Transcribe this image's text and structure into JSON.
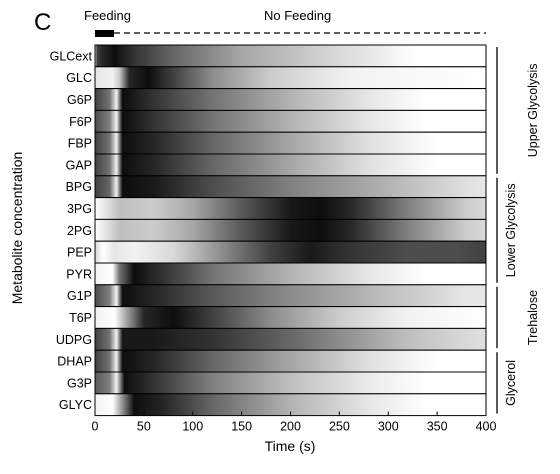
{
  "panel_label": "C",
  "feeding_label": "Feeding",
  "no_feeding_label": "No Feeding",
  "chart_data": {
    "type": "heatmap",
    "ylabel": "Metabolite concentration",
    "xlabel": "Time (s)",
    "xlim": [
      0,
      400
    ],
    "xticks": [
      0,
      50,
      100,
      150,
      200,
      250,
      300,
      350,
      400
    ],
    "feeding_period": [
      0,
      20
    ],
    "colormap": "white (low) to black (high)",
    "rows": [
      {
        "name": "GLCext",
        "profile": [
          [
            0,
            0.0
          ],
          [
            2,
            0.75
          ],
          [
            8,
            0.85
          ],
          [
            20,
            0.95
          ],
          [
            40,
            0.8
          ],
          [
            80,
            0.6
          ],
          [
            150,
            0.35
          ],
          [
            250,
            0.15
          ],
          [
            330,
            0.0
          ],
          [
            400,
            0.0
          ]
        ]
      },
      {
        "name": "GLC",
        "profile": [
          [
            0,
            0.1
          ],
          [
            18,
            0.05
          ],
          [
            25,
            0.2
          ],
          [
            35,
            0.85
          ],
          [
            55,
            0.95
          ],
          [
            80,
            0.75
          ],
          [
            120,
            0.45
          ],
          [
            180,
            0.2
          ],
          [
            260,
            0.05
          ],
          [
            400,
            0.0
          ]
        ]
      },
      {
        "name": "G6P",
        "profile": [
          [
            0,
            0.75
          ],
          [
            15,
            0.55
          ],
          [
            22,
            0.05
          ],
          [
            28,
            0.95
          ],
          [
            60,
            0.8
          ],
          [
            120,
            0.55
          ],
          [
            200,
            0.3
          ],
          [
            280,
            0.1
          ],
          [
            340,
            0.0
          ],
          [
            400,
            0.0
          ]
        ]
      },
      {
        "name": "F6P",
        "profile": [
          [
            0,
            0.7
          ],
          [
            15,
            0.5
          ],
          [
            22,
            0.05
          ],
          [
            28,
            0.95
          ],
          [
            60,
            0.8
          ],
          [
            120,
            0.55
          ],
          [
            200,
            0.3
          ],
          [
            280,
            0.1
          ],
          [
            340,
            0.0
          ],
          [
            400,
            0.0
          ]
        ]
      },
      {
        "name": "FBP",
        "profile": [
          [
            0,
            0.75
          ],
          [
            15,
            0.55
          ],
          [
            22,
            0.05
          ],
          [
            28,
            0.95
          ],
          [
            60,
            0.85
          ],
          [
            120,
            0.6
          ],
          [
            200,
            0.35
          ],
          [
            280,
            0.12
          ],
          [
            350,
            0.0
          ],
          [
            400,
            0.0
          ]
        ]
      },
      {
        "name": "GAP",
        "profile": [
          [
            0,
            0.75
          ],
          [
            15,
            0.55
          ],
          [
            22,
            0.05
          ],
          [
            28,
            0.95
          ],
          [
            60,
            0.85
          ],
          [
            120,
            0.6
          ],
          [
            200,
            0.35
          ],
          [
            280,
            0.12
          ],
          [
            350,
            0.0
          ],
          [
            400,
            0.0
          ]
        ]
      },
      {
        "name": "BPG",
        "profile": [
          [
            0,
            0.75
          ],
          [
            15,
            0.6
          ],
          [
            22,
            0.05
          ],
          [
            28,
            0.95
          ],
          [
            60,
            0.9
          ],
          [
            120,
            0.7
          ],
          [
            200,
            0.5
          ],
          [
            300,
            0.3
          ],
          [
            380,
            0.12
          ],
          [
            400,
            0.1
          ]
        ]
      },
      {
        "name": "3PG",
        "profile": [
          [
            0,
            0.0
          ],
          [
            10,
            0.1
          ],
          [
            25,
            0.25
          ],
          [
            60,
            0.2
          ],
          [
            100,
            0.35
          ],
          [
            150,
            0.65
          ],
          [
            200,
            0.9
          ],
          [
            230,
            0.95
          ],
          [
            260,
            0.85
          ],
          [
            320,
            0.5
          ],
          [
            380,
            0.2
          ],
          [
            400,
            0.15
          ]
        ]
      },
      {
        "name": "2PG",
        "profile": [
          [
            0,
            0.0
          ],
          [
            10,
            0.1
          ],
          [
            25,
            0.25
          ],
          [
            60,
            0.2
          ],
          [
            100,
            0.35
          ],
          [
            150,
            0.65
          ],
          [
            200,
            0.9
          ],
          [
            230,
            0.95
          ],
          [
            260,
            0.85
          ],
          [
            320,
            0.5
          ],
          [
            380,
            0.2
          ],
          [
            400,
            0.15
          ]
        ]
      },
      {
        "name": "PEP",
        "profile": [
          [
            0,
            0.15
          ],
          [
            8,
            0.0
          ],
          [
            20,
            0.1
          ],
          [
            40,
            0.05
          ],
          [
            80,
            0.15
          ],
          [
            130,
            0.45
          ],
          [
            180,
            0.75
          ],
          [
            220,
            0.9
          ],
          [
            260,
            0.8
          ],
          [
            320,
            0.7
          ],
          [
            370,
            0.7
          ],
          [
            400,
            0.75
          ]
        ]
      },
      {
        "name": "PYR",
        "profile": [
          [
            0,
            0.05
          ],
          [
            18,
            0.0
          ],
          [
            25,
            0.55
          ],
          [
            40,
            0.95
          ],
          [
            70,
            0.8
          ],
          [
            120,
            0.55
          ],
          [
            200,
            0.3
          ],
          [
            280,
            0.1
          ],
          [
            340,
            0.0
          ],
          [
            400,
            0.0
          ]
        ]
      },
      {
        "name": "G1P",
        "profile": [
          [
            0,
            0.7
          ],
          [
            15,
            0.5
          ],
          [
            22,
            0.05
          ],
          [
            28,
            0.95
          ],
          [
            60,
            0.85
          ],
          [
            120,
            0.65
          ],
          [
            200,
            0.45
          ],
          [
            300,
            0.25
          ],
          [
            380,
            0.1
          ],
          [
            400,
            0.1
          ]
        ]
      },
      {
        "name": "T6P",
        "profile": [
          [
            0,
            0.05
          ],
          [
            20,
            0.0
          ],
          [
            30,
            0.3
          ],
          [
            50,
            0.85
          ],
          [
            80,
            0.95
          ],
          [
            120,
            0.75
          ],
          [
            180,
            0.45
          ],
          [
            250,
            0.2
          ],
          [
            320,
            0.05
          ],
          [
            400,
            0.0
          ]
        ]
      },
      {
        "name": "UDPG",
        "profile": [
          [
            0,
            0.75
          ],
          [
            15,
            0.55
          ],
          [
            22,
            0.05
          ],
          [
            28,
            0.9
          ],
          [
            60,
            0.9
          ],
          [
            120,
            0.8
          ],
          [
            180,
            0.65
          ],
          [
            250,
            0.45
          ],
          [
            320,
            0.25
          ],
          [
            380,
            0.15
          ],
          [
            400,
            0.12
          ]
        ]
      },
      {
        "name": "DHAP",
        "profile": [
          [
            0,
            0.75
          ],
          [
            15,
            0.55
          ],
          [
            22,
            0.05
          ],
          [
            28,
            0.95
          ],
          [
            60,
            0.85
          ],
          [
            120,
            0.6
          ],
          [
            200,
            0.35
          ],
          [
            280,
            0.12
          ],
          [
            350,
            0.0
          ],
          [
            400,
            0.0
          ]
        ]
      },
      {
        "name": "G3P",
        "profile": [
          [
            0,
            0.65
          ],
          [
            15,
            0.5
          ],
          [
            22,
            0.05
          ],
          [
            30,
            0.95
          ],
          [
            60,
            0.8
          ],
          [
            120,
            0.5
          ],
          [
            200,
            0.25
          ],
          [
            280,
            0.08
          ],
          [
            340,
            0.0
          ],
          [
            400,
            0.0
          ]
        ]
      },
      {
        "name": "GLYC",
        "profile": [
          [
            0,
            0.05
          ],
          [
            18,
            0.0
          ],
          [
            25,
            0.3
          ],
          [
            40,
            0.95
          ],
          [
            70,
            0.85
          ],
          [
            120,
            0.6
          ],
          [
            200,
            0.3
          ],
          [
            280,
            0.1
          ],
          [
            340,
            0.0
          ],
          [
            400,
            0.0
          ]
        ]
      }
    ],
    "groups": [
      {
        "label": "Upper Glycolysis",
        "from": "GLCext",
        "to": "GAP"
      },
      {
        "label": "Lower Glycolysis",
        "from": "BPG",
        "to": "PYR"
      },
      {
        "label": "Trehalose",
        "from": "G1P",
        "to": "UDPG"
      },
      {
        "label": "Glycerol",
        "from": "DHAP",
        "to": "GLYC"
      }
    ]
  }
}
